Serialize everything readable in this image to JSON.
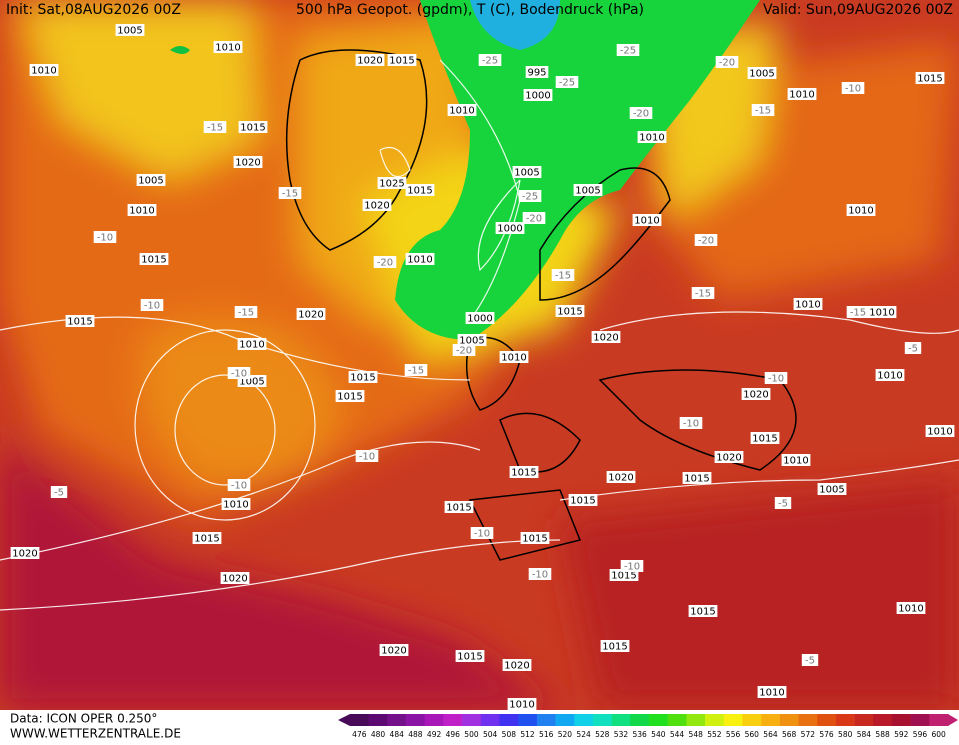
{
  "header": {
    "init": "Init: Sat,08AUG2026 00Z",
    "title": "500 hPa Geopot. (gpdm), T (C), Bodendruck (hPa)",
    "valid": "Valid: Sun,09AUG2026 00Z"
  },
  "map": {
    "pressure_labels": [
      1005,
      1010,
      1010,
      1020,
      1015,
      1010,
      995,
      1000,
      1005,
      1010,
      1015,
      1010,
      1015,
      1020,
      1005,
      1010,
      1025,
      1015,
      1020,
      1005,
      1005,
      1010,
      1000,
      1010,
      1015,
      1015,
      1020,
      1010,
      1005,
      1000,
      1005,
      1010,
      1015,
      1020,
      1015,
      1015,
      1010,
      1010,
      1010,
      1010,
      1020,
      1015,
      1020,
      1010,
      1005,
      1015,
      1020,
      1015,
      1015,
      1015,
      1010,
      1015,
      1015,
      1020,
      1020,
      1015,
      1015,
      1010,
      1015,
      1020,
      1015,
      1020,
      1010,
      1010,
      1010
    ],
    "temperature_labels": [
      -25,
      -25,
      -25,
      -20,
      -20,
      -15,
      -10,
      -15,
      -15,
      -25,
      -20,
      -20,
      -15,
      -15,
      -10,
      -10,
      -15,
      -20,
      -20,
      -15,
      -10,
      -10,
      -10,
      -5,
      -10,
      -10,
      -15,
      -5,
      -5,
      -10,
      -10,
      -10,
      -5
    ]
  },
  "colorbar": {
    "values": [
      476,
      480,
      484,
      488,
      492,
      496,
      500,
      504,
      508,
      512,
      516,
      520,
      524,
      528,
      532,
      536,
      540,
      544,
      548,
      552,
      556,
      560,
      564,
      568,
      572,
      576,
      580,
      584,
      588,
      592,
      596,
      600
    ],
    "colors": [
      "#4a0a5a",
      "#5c0a72",
      "#74108a",
      "#8c14a4",
      "#a818b8",
      "#c020c8",
      "#a030e0",
      "#7030f0",
      "#4030f0",
      "#2050f0",
      "#2080f0",
      "#10a8f0",
      "#10d0e8",
      "#10e0c0",
      "#10e080",
      "#10d848",
      "#20e020",
      "#50e010",
      "#90e810",
      "#d0f010",
      "#f8f010",
      "#f8d010",
      "#f8b010",
      "#f09010",
      "#e87010",
      "#e05010",
      "#d83818",
      "#c82820",
      "#b81828",
      "#a81030",
      "#a01050",
      "#c02070"
    ]
  },
  "footer": {
    "data": "Data: ICON OPER 0.250°",
    "site": "WWW.WETTERZENTRALE.DE"
  }
}
